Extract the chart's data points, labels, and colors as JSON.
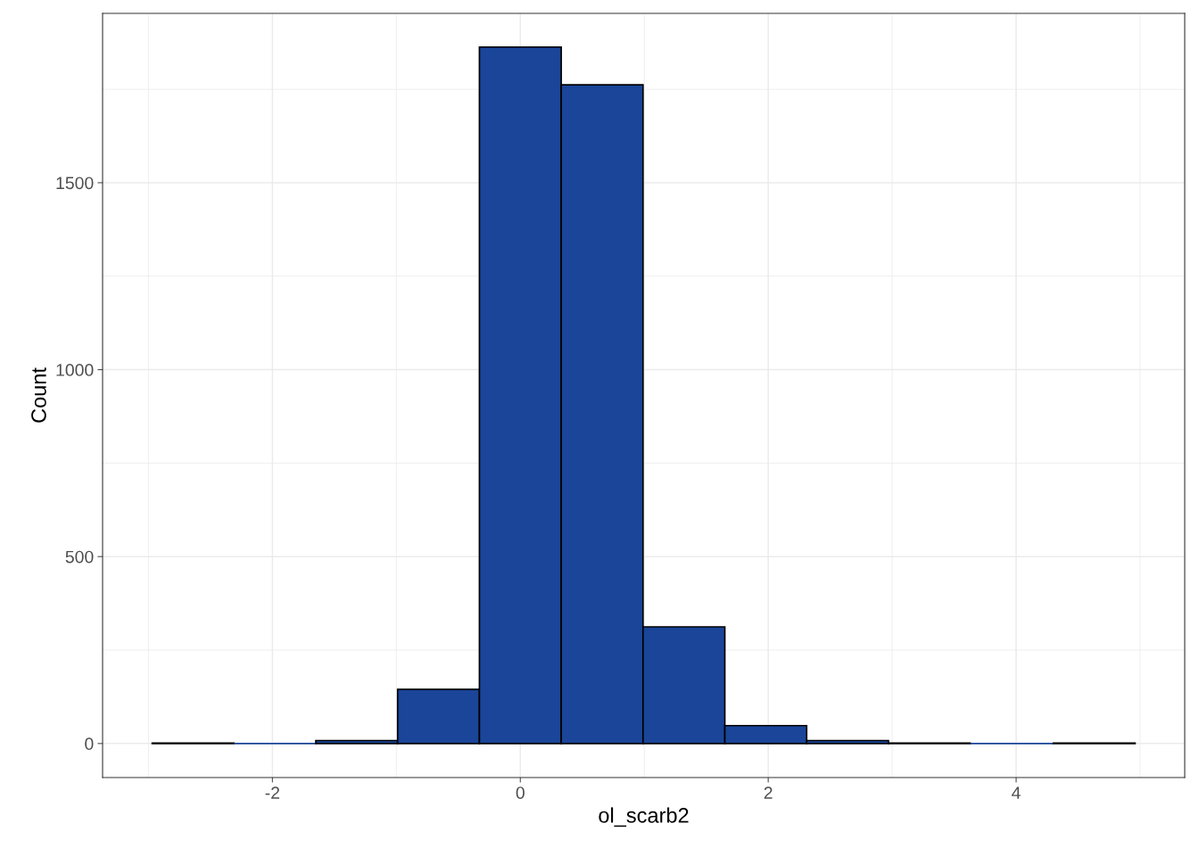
{
  "chart_data": {
    "type": "histogram",
    "xlabel": "ol_scarb2",
    "ylabel": "Count",
    "bins": [
      -2.97,
      -2.31,
      -1.65,
      -0.99,
      -0.33,
      0.33,
      0.99,
      1.65,
      2.31,
      2.97,
      3.63,
      4.3,
      4.96
    ],
    "values": [
      1,
      0,
      8,
      145,
      1863,
      1762,
      312,
      48,
      8,
      1,
      0,
      1
    ],
    "color": "#1a4599",
    "xlim": [
      -3.37,
      5.36
    ],
    "ylim": [
      -91,
      1953
    ],
    "xticks": [
      {
        "value": -3,
        "label": null
      },
      -2,
      {
        "value": -1,
        "label": null
      },
      0,
      {
        "value": 1,
        "label": null
      },
      2,
      {
        "value": 3,
        "label": null
      },
      4,
      {
        "value": 5,
        "label": null
      }
    ],
    "yticks": [
      0,
      {
        "value": 250,
        "label": null
      },
      500,
      {
        "value": 750,
        "label": null
      },
      1000,
      {
        "value": 1250,
        "label": null
      },
      1500,
      {
        "value": 1750,
        "label": null
      }
    ],
    "grid": true
  }
}
